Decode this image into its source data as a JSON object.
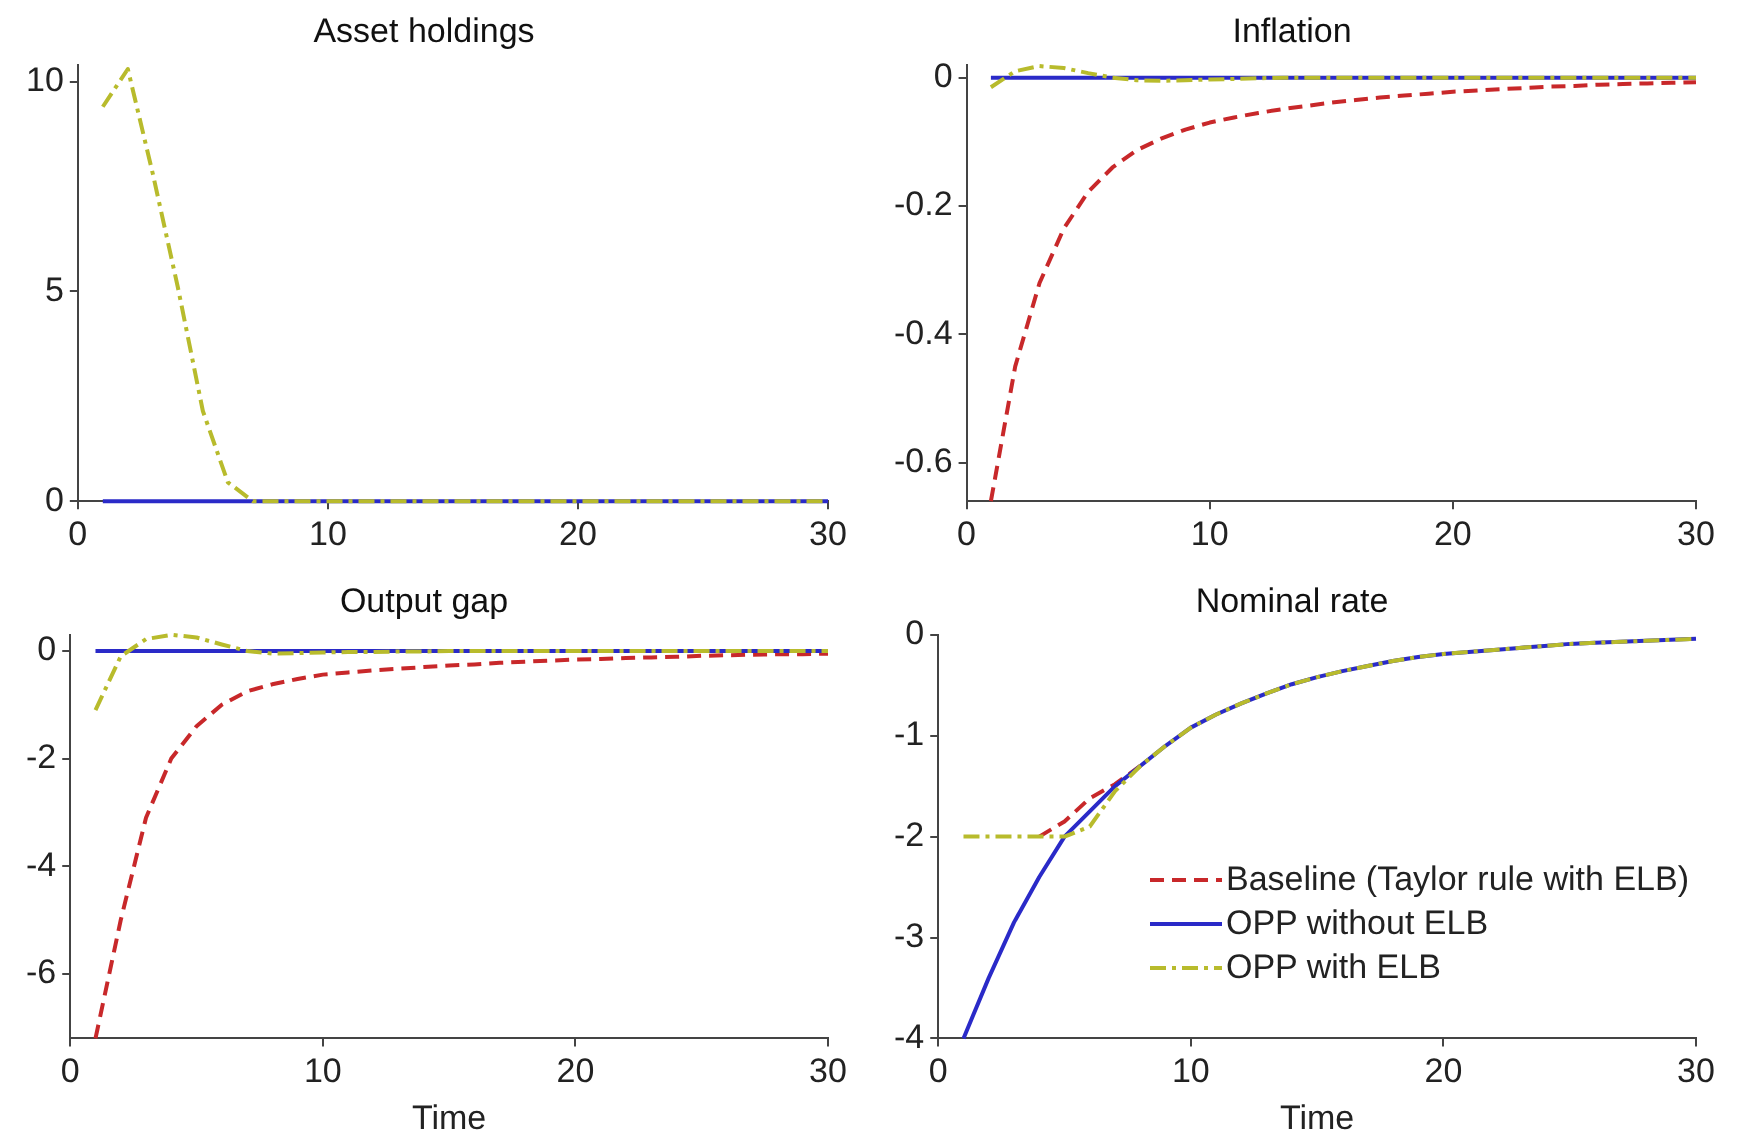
{
  "chart_data": [
    {
      "type": "line",
      "title": "Asset holdings",
      "x": [
        1,
        2,
        3,
        4,
        5,
        6,
        7,
        8,
        9,
        10,
        11,
        12,
        13,
        14,
        15,
        16,
        17,
        18,
        19,
        20,
        21,
        22,
        23,
        24,
        25,
        26,
        27,
        28,
        29,
        30
      ],
      "xlim": [
        0,
        30
      ],
      "xticks": [
        0,
        10,
        20,
        30
      ],
      "ylim": [
        0,
        10.4
      ],
      "yticks": [
        0,
        5,
        10
      ],
      "grid": false,
      "legend": false,
      "series": [
        {
          "color": "#2a2ac8",
          "line_style": "solid",
          "values": [
            0,
            0,
            0,
            0,
            0,
            0,
            0,
            0,
            0,
            0,
            0,
            0,
            0,
            0,
            0,
            0,
            0,
            0,
            0,
            0,
            0,
            0,
            0,
            0,
            0,
            0,
            0,
            0,
            0,
            0
          ]
        },
        {
          "color": "#b8bb2c",
          "line_style": "dashdot",
          "values": [
            9.4,
            10.3,
            7.8,
            5.1,
            2.15,
            0.45,
            0,
            0,
            0,
            0,
            0,
            0,
            0,
            0,
            0,
            0,
            0,
            0,
            0,
            0,
            0,
            0,
            0,
            0,
            0,
            0,
            0,
            0,
            0,
            0
          ]
        }
      ]
    },
    {
      "type": "line",
      "title": "Inflation",
      "x": [
        1,
        2,
        3,
        4,
        5,
        6,
        7,
        8,
        9,
        10,
        11,
        12,
        13,
        14,
        15,
        16,
        17,
        18,
        19,
        20,
        21,
        22,
        23,
        24,
        25,
        26,
        27,
        28,
        29,
        30
      ],
      "xlim": [
        0,
        30
      ],
      "xticks": [
        0,
        10,
        20,
        30
      ],
      "ylim": [
        -0.66,
        0.02
      ],
      "yticks": [
        -0.6,
        -0.4,
        -0.2,
        0
      ],
      "grid": false,
      "legend": false,
      "series": [
        {
          "color": "#c8282a",
          "line_style": "dashed",
          "values": [
            -0.66,
            -0.45,
            -0.32,
            -0.235,
            -0.178,
            -0.14,
            -0.113,
            -0.095,
            -0.081,
            -0.07,
            -0.062,
            -0.055,
            -0.049,
            -0.044,
            -0.039,
            -0.035,
            -0.031,
            -0.028,
            -0.025,
            -0.022,
            -0.02,
            -0.018,
            -0.016,
            -0.014,
            -0.013,
            -0.011,
            -0.01,
            -0.009,
            -0.008,
            -0.007
          ]
        },
        {
          "color": "#2a2ac8",
          "line_style": "solid",
          "values": [
            0,
            0,
            0,
            0,
            0,
            0,
            0,
            0,
            0,
            0,
            0,
            0,
            0,
            0,
            0,
            0,
            0,
            0,
            0,
            0,
            0,
            0,
            0,
            0,
            0,
            0,
            0,
            0,
            0,
            0
          ]
        },
        {
          "color": "#b8bb2c",
          "line_style": "dashdot",
          "values": [
            -0.015,
            0.01,
            0.018,
            0.015,
            0.007,
            0,
            -0.004,
            -0.005,
            -0.004,
            -0.003,
            -0.002,
            -0.001,
            0,
            0,
            0,
            0,
            0,
            0,
            0,
            0,
            0,
            0,
            0,
            0,
            0,
            0,
            0,
            0,
            0,
            0
          ]
        }
      ]
    },
    {
      "type": "line",
      "title": "Output gap",
      "xlabel": "Time",
      "x": [
        1,
        2,
        3,
        4,
        5,
        6,
        7,
        8,
        9,
        10,
        11,
        12,
        13,
        14,
        15,
        16,
        17,
        18,
        19,
        20,
        21,
        22,
        23,
        24,
        25,
        26,
        27,
        28,
        29,
        30
      ],
      "xlim": [
        0,
        30
      ],
      "xticks": [
        0,
        10,
        20,
        30
      ],
      "ylim": [
        -7.2,
        0.3
      ],
      "yticks": [
        -6,
        -4,
        -2,
        0
      ],
      "grid": false,
      "legend": false,
      "series": [
        {
          "color": "#c8282a",
          "line_style": "dashed",
          "values": [
            -7.2,
            -5.0,
            -3.1,
            -2.0,
            -1.4,
            -1.0,
            -0.75,
            -0.62,
            -0.52,
            -0.44,
            -0.4,
            -0.36,
            -0.33,
            -0.3,
            -0.27,
            -0.25,
            -0.22,
            -0.2,
            -0.18,
            -0.16,
            -0.15,
            -0.13,
            -0.12,
            -0.11,
            -0.09,
            -0.08,
            -0.07,
            -0.06,
            -0.06,
            -0.05
          ]
        },
        {
          "color": "#2a2ac8",
          "line_style": "solid",
          "values": [
            0,
            0,
            0,
            0,
            0,
            0,
            0,
            0,
            0,
            0,
            0,
            0,
            0,
            0,
            0,
            0,
            0,
            0,
            0,
            0,
            0,
            0,
            0,
            0,
            0,
            0,
            0,
            0,
            0,
            0
          ]
        },
        {
          "color": "#b8bb2c",
          "line_style": "dashdot",
          "values": [
            -1.1,
            -0.1,
            0.22,
            0.3,
            0.25,
            0.12,
            0,
            -0.05,
            -0.04,
            -0.03,
            -0.02,
            -0.02,
            -0.01,
            -0.01,
            0,
            0,
            0,
            0,
            0,
            0,
            0,
            0,
            0,
            0,
            0,
            0,
            0,
            0,
            0,
            0
          ]
        }
      ]
    },
    {
      "type": "line",
      "title": "Nominal rate",
      "xlabel": "Time",
      "x": [
        1,
        2,
        3,
        4,
        5,
        6,
        7,
        8,
        9,
        10,
        11,
        12,
        13,
        14,
        15,
        16,
        17,
        18,
        19,
        20,
        21,
        22,
        23,
        24,
        25,
        26,
        27,
        28,
        29,
        30
      ],
      "xlim": [
        0,
        30
      ],
      "xticks": [
        0,
        10,
        20,
        30
      ],
      "ylim": [
        -4,
        0
      ],
      "yticks": [
        -4,
        -3,
        -2,
        -1,
        0
      ],
      "grid": false,
      "legend": "bottom right",
      "series": [
        {
          "name": "Baseline (Taylor rule with ELB)",
          "color": "#c8282a",
          "line_style": "dashed",
          "values": [
            null,
            null,
            null,
            -2,
            -1.85,
            -1.62,
            -1.48,
            -1.3,
            null,
            null,
            null,
            null,
            null,
            null,
            null,
            null,
            null,
            null,
            null,
            null,
            null,
            null,
            null,
            null,
            null,
            null,
            null,
            null,
            null,
            null
          ]
        },
        {
          "name": "OPP without ELB",
          "color": "#2a2ac8",
          "line_style": "solid",
          "values": [
            -4,
            -3.4,
            -2.85,
            -2.4,
            -2.0,
            -1.75,
            -1.5,
            -1.3,
            -1.1,
            -0.92,
            -0.79,
            -0.68,
            -0.58,
            -0.49,
            -0.42,
            -0.36,
            -0.31,
            -0.26,
            -0.22,
            -0.19,
            -0.17,
            -0.15,
            -0.13,
            -0.11,
            -0.09,
            -0.08,
            -0.07,
            -0.06,
            -0.05,
            -0.04
          ]
        },
        {
          "name": "OPP with ELB",
          "color": "#b8bb2c",
          "line_style": "dashdot",
          "values": [
            -2,
            -2,
            -2,
            -2,
            -2,
            -1.9,
            -1.55,
            -1.3,
            -1.1,
            -0.92,
            -0.79,
            -0.68,
            -0.58,
            -0.49,
            -0.42,
            -0.36,
            -0.31,
            -0.26,
            -0.22,
            -0.19,
            -0.17,
            -0.15,
            -0.13,
            -0.11,
            -0.09,
            -0.08,
            -0.07,
            -0.06,
            -0.05,
            -0.04
          ]
        }
      ]
    }
  ]
}
